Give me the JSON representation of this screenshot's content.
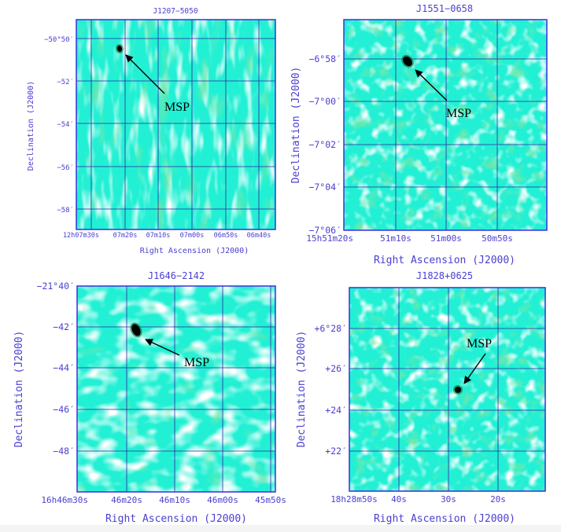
{
  "colors": {
    "frame": "#3a2fe0",
    "grid": "#2a2aa0",
    "label": "#4a3fd0",
    "base": "#22f0d4",
    "light": "#b8fff8",
    "green": "#2ccd6a",
    "source": "#000000"
  },
  "panels": [
    {
      "title": "J1207−5050",
      "xlabel": "Right Ascension (J2000)",
      "ylabel": "Declination (J2000)",
      "xticks": [
        "12h07m30s",
        "07m20s",
        "07m10s",
        "07m00s",
        "06m50s",
        "06m40s"
      ],
      "yticks": [
        "−50°50′",
        "−52′",
        "−54′",
        "−56′",
        "−58′"
      ],
      "annotation": "MSP",
      "texture": "vertical-streaks"
    },
    {
      "title": "J1551−0658",
      "xlabel": "Right Ascension (J2000)",
      "ylabel": "Declination (J2000)",
      "xticks": [
        "15h51m20s",
        "51m10s",
        "51m00s",
        "50m50s"
      ],
      "yticks": [
        "−6°58′",
        "−7°00′",
        "−7°02′",
        "−7°04′",
        "−7°06′"
      ],
      "annotation": "MSP",
      "texture": "blotchy"
    },
    {
      "title": "J1646−2142",
      "xlabel": "Right Ascension (J2000)",
      "ylabel": "Declination (J2000)",
      "xticks": [
        "16h46m30s",
        "46m20s",
        "46m10s",
        "46m00s",
        "45m50s"
      ],
      "yticks": [
        "−21°40′",
        "−42′",
        "−44′",
        "−46′",
        "−48′"
      ],
      "annotation": "MSP",
      "texture": "diagonal-streaks"
    },
    {
      "title": "J1828+0625",
      "xlabel": "Right Ascension (J2000)",
      "ylabel": "Declination (J2000)",
      "xticks": [
        "18h28m50s",
        "40s",
        "30s",
        "20s"
      ],
      "yticks": [
        "+6°28′",
        "+26′",
        "+24′",
        "+22′"
      ],
      "annotation": "MSP",
      "texture": "blotchy"
    }
  ]
}
